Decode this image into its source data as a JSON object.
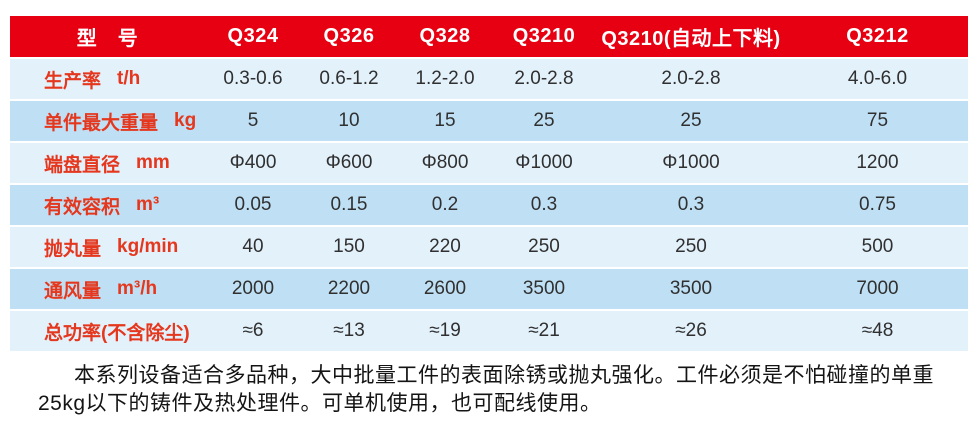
{
  "header": {
    "model_label": "型　号",
    "models": [
      "Q324",
      "Q326",
      "Q328",
      "Q3210",
      "Q3210(自动上下料)",
      "Q3212"
    ]
  },
  "rows": [
    {
      "name": "生产率",
      "unit": "t/h",
      "values": [
        "0.3-0.6",
        "0.6-1.2",
        "1.2-2.0",
        "2.0-2.8",
        "2.0-2.8",
        "4.0-6.0"
      ]
    },
    {
      "name": "单件最大重量",
      "unit": "kg",
      "values": [
        "5",
        "10",
        "15",
        "25",
        "25",
        "75"
      ]
    },
    {
      "name": "端盘直径",
      "unit": "mm",
      "values": [
        "Φ400",
        "Φ600",
        "Φ800",
        "Φ1000",
        "Φ1000",
        "1200"
      ]
    },
    {
      "name": "有效容积",
      "unit": "m³",
      "values": [
        "0.05",
        "0.15",
        "0.2",
        "0.3",
        "0.3",
        "0.75"
      ]
    },
    {
      "name": "抛丸量",
      "unit": "kg/min",
      "values": [
        "40",
        "150",
        "220",
        "250",
        "250",
        "500"
      ]
    },
    {
      "name": "通风量",
      "unit": "m³/h",
      "values": [
        "2000",
        "2200",
        "2600",
        "3500",
        "3500",
        "7000"
      ]
    },
    {
      "name": "总功率(不含除尘)",
      "unit": "",
      "values": [
        "≈6",
        "≈13",
        "≈19",
        "≈21",
        "≈26",
        "≈48"
      ]
    }
  ],
  "footer": {
    "line1": "本系列设备适合多品种，大中批量工件的表面除锈或抛丸强化。工件必须是不怕碰撞的单重",
    "line2": "25kg以下的铸件及热处理件。可单机使用，也可配线使用。"
  },
  "colors": {
    "header_red": "#e60012",
    "label_red": "#e5371d",
    "row_light": "#e3f1fb",
    "row_dark": "#bfe0f4",
    "value_text": "#303030"
  }
}
